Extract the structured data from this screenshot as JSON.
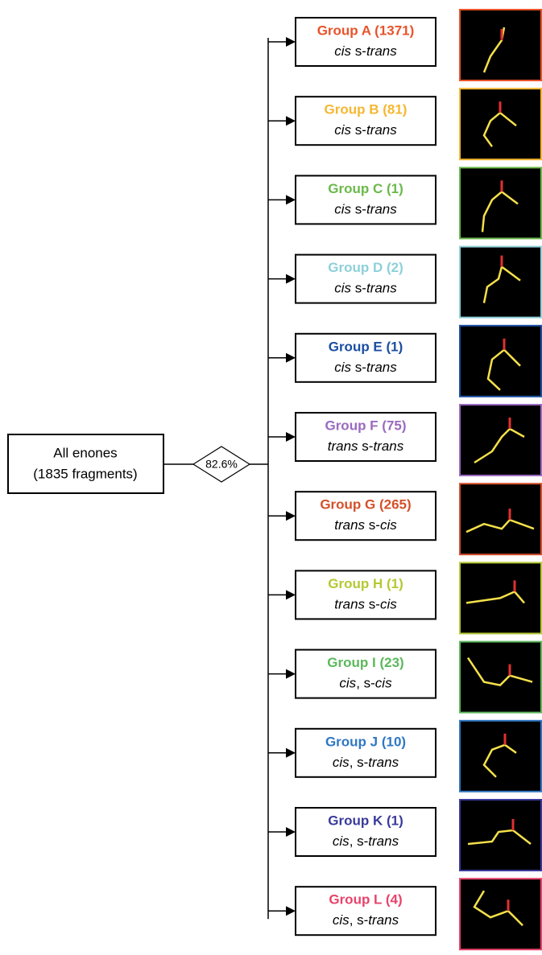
{
  "root": {
    "lines": [
      "All enones",
      "(1835 fragments)"
    ]
  },
  "decision": {
    "label": "82.6%"
  },
  "groups": [
    {
      "name": "Group A (1371)",
      "color": "#e8532a",
      "subtitle": [
        "cis",
        " s-",
        "trans"
      ]
    },
    {
      "name": "Group B (81)",
      "color": "#f5b730",
      "subtitle": [
        "cis",
        " s-",
        "trans"
      ]
    },
    {
      "name": "Group C (1)",
      "color": "#6ab94a",
      "subtitle": [
        "cis",
        " s-",
        "trans"
      ]
    },
    {
      "name": "Group D (2)",
      "color": "#8ed0d8",
      "subtitle": [
        "cis",
        " s-",
        "trans"
      ]
    },
    {
      "name": "Group E (1)",
      "color": "#1a4ea0",
      "subtitle": [
        "cis",
        " s-",
        "trans"
      ]
    },
    {
      "name": "Group F (75)",
      "color": "#9a6ac0",
      "subtitle": [
        "trans",
        " s-",
        "trans"
      ]
    },
    {
      "name": "Group G (265)",
      "color": "#d4502a",
      "subtitle": [
        "trans",
        " s-",
        "cis"
      ]
    },
    {
      "name": "Group H (1)",
      "color": "#b5c832",
      "subtitle": [
        "trans",
        " s-",
        "cis"
      ]
    },
    {
      "name": "Group I (23)",
      "color": "#5cb85c",
      "subtitle": [
        "cis",
        ", s-",
        "cis"
      ]
    },
    {
      "name": "Group J (10)",
      "color": "#2f77c3",
      "subtitle": [
        "cis",
        ", s-",
        "trans"
      ]
    },
    {
      "name": "Group K (1)",
      "color": "#3a3a9a",
      "subtitle": [
        "cis",
        ", s-",
        "trans"
      ]
    },
    {
      "name": "Group L (4)",
      "color": "#e8436a",
      "subtitle": [
        "cis",
        ", s-",
        "trans"
      ]
    }
  ]
}
